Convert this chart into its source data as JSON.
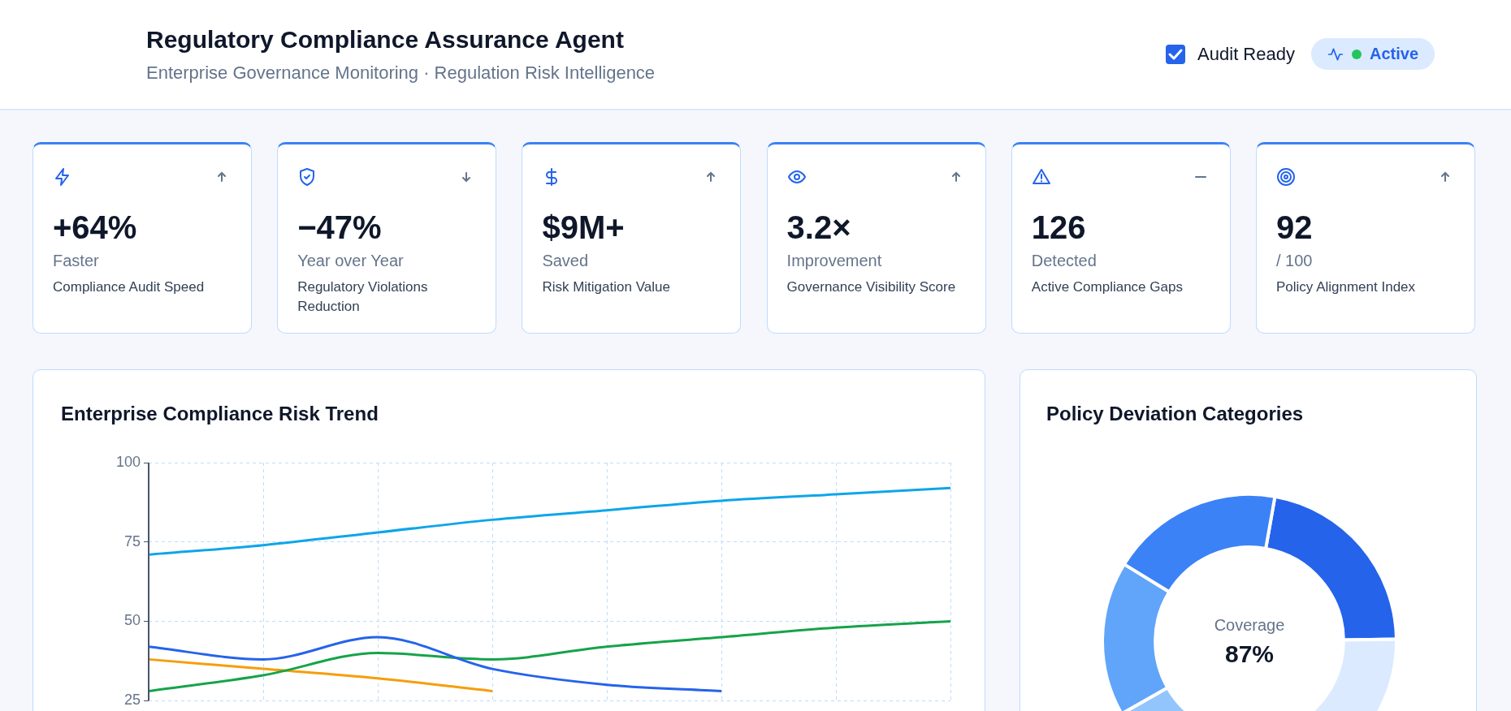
{
  "chart_data": [
    {
      "type": "other",
      "title": "Regulatory Compliance Assurance Agent",
      "subtitle": "Enterprise Governance Monitoring · Regulation Risk Intelligence",
      "annotations": [
        "Audit Ready",
        "Active"
      ]
    },
    {
      "type": "other",
      "title": "+64%",
      "subtitle": "Faster",
      "annotations": [
        "Compliance Audit Speed"
      ]
    },
    {
      "type": "other",
      "title": "−47%",
      "subtitle": "Year over Year",
      "annotations": [
        "Regulatory Violations Reduction"
      ]
    },
    {
      "type": "other",
      "title": "$9M+",
      "subtitle": "Saved",
      "annotations": [
        "Risk Mitigation Value"
      ]
    },
    {
      "type": "other",
      "title": "3.2×",
      "subtitle": "Improvement",
      "annotations": [
        "Governance Visibility Score"
      ]
    },
    {
      "type": "other",
      "title": "126",
      "subtitle": "Detected",
      "annotations": [
        "Active Compliance Gaps"
      ]
    },
    {
      "type": "other",
      "title": "92",
      "subtitle": "/ 100",
      "annotations": [
        "Policy Alignment Index"
      ]
    },
    {
      "type": "line",
      "title": "Enterprise Compliance Risk Trend",
      "categories": [
        null,
        null,
        null,
        null,
        null,
        null,
        null,
        null
      ],
      "ylim": [
        25,
        100
      ],
      "yticks": [
        25,
        50,
        75,
        100
      ],
      "grid": true,
      "legend": false,
      "marker": "none",
      "line_style": "solid",
      "tick_labels": "y",
      "series": [
        {
          "color": "#0ea5e9",
          "values": [
            71,
            74,
            78,
            82,
            85,
            88,
            90,
            92
          ]
        },
        {
          "color": "#2563eb",
          "values": [
            42,
            38,
            45,
            35,
            30,
            28,
            null,
            null
          ]
        },
        {
          "color": "#16a34a",
          "values": [
            28,
            33,
            40,
            38,
            42,
            45,
            48,
            50
          ]
        },
        {
          "color": "#f59e0b",
          "values": [
            38,
            35,
            32,
            28,
            null,
            null,
            null,
            null
          ]
        }
      ]
    },
    {
      "type": "donut",
      "title": "Policy Deviation Categories",
      "categories": [
        null,
        null,
        null,
        null,
        null
      ],
      "values": [
        22,
        30,
        12,
        17,
        19
      ],
      "colors": [
        "#2563eb",
        "#dbeafe",
        "#93c5fd",
        "#60a5fa",
        "#3b82f6"
      ],
      "legend": false,
      "annotations": [
        "Coverage",
        "87%"
      ]
    }
  ]
}
